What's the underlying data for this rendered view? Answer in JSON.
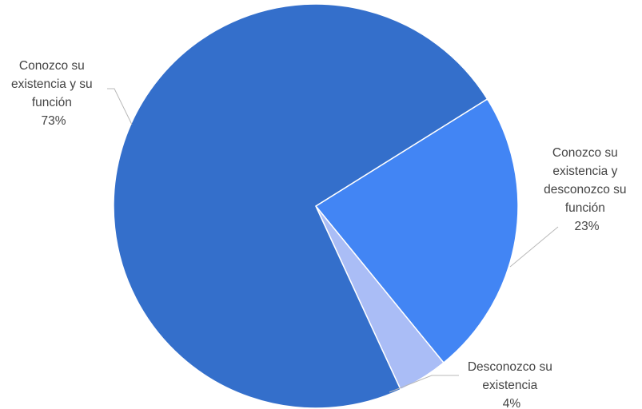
{
  "chart_data": {
    "type": "pie",
    "title": "",
    "slices": [
      {
        "label_lines": [
          "Conozco su",
          "existencia y",
          "desconozco su",
          "función"
        ],
        "value": 23,
        "value_label": "23%",
        "color": "#4285f4"
      },
      {
        "label_lines": [
          "Desconozco su",
          "existencia"
        ],
        "value": 4,
        "value_label": "4%",
        "color": "#aabdf6"
      },
      {
        "label_lines": [
          "Conozco su",
          "existencia y su",
          "función"
        ],
        "value": 73,
        "value_label": "73%",
        "color": "#346fcb"
      }
    ],
    "start_angle_deg": 58,
    "direction": "clockwise",
    "legend": "none",
    "labels": "outside-with-leader-lines"
  }
}
